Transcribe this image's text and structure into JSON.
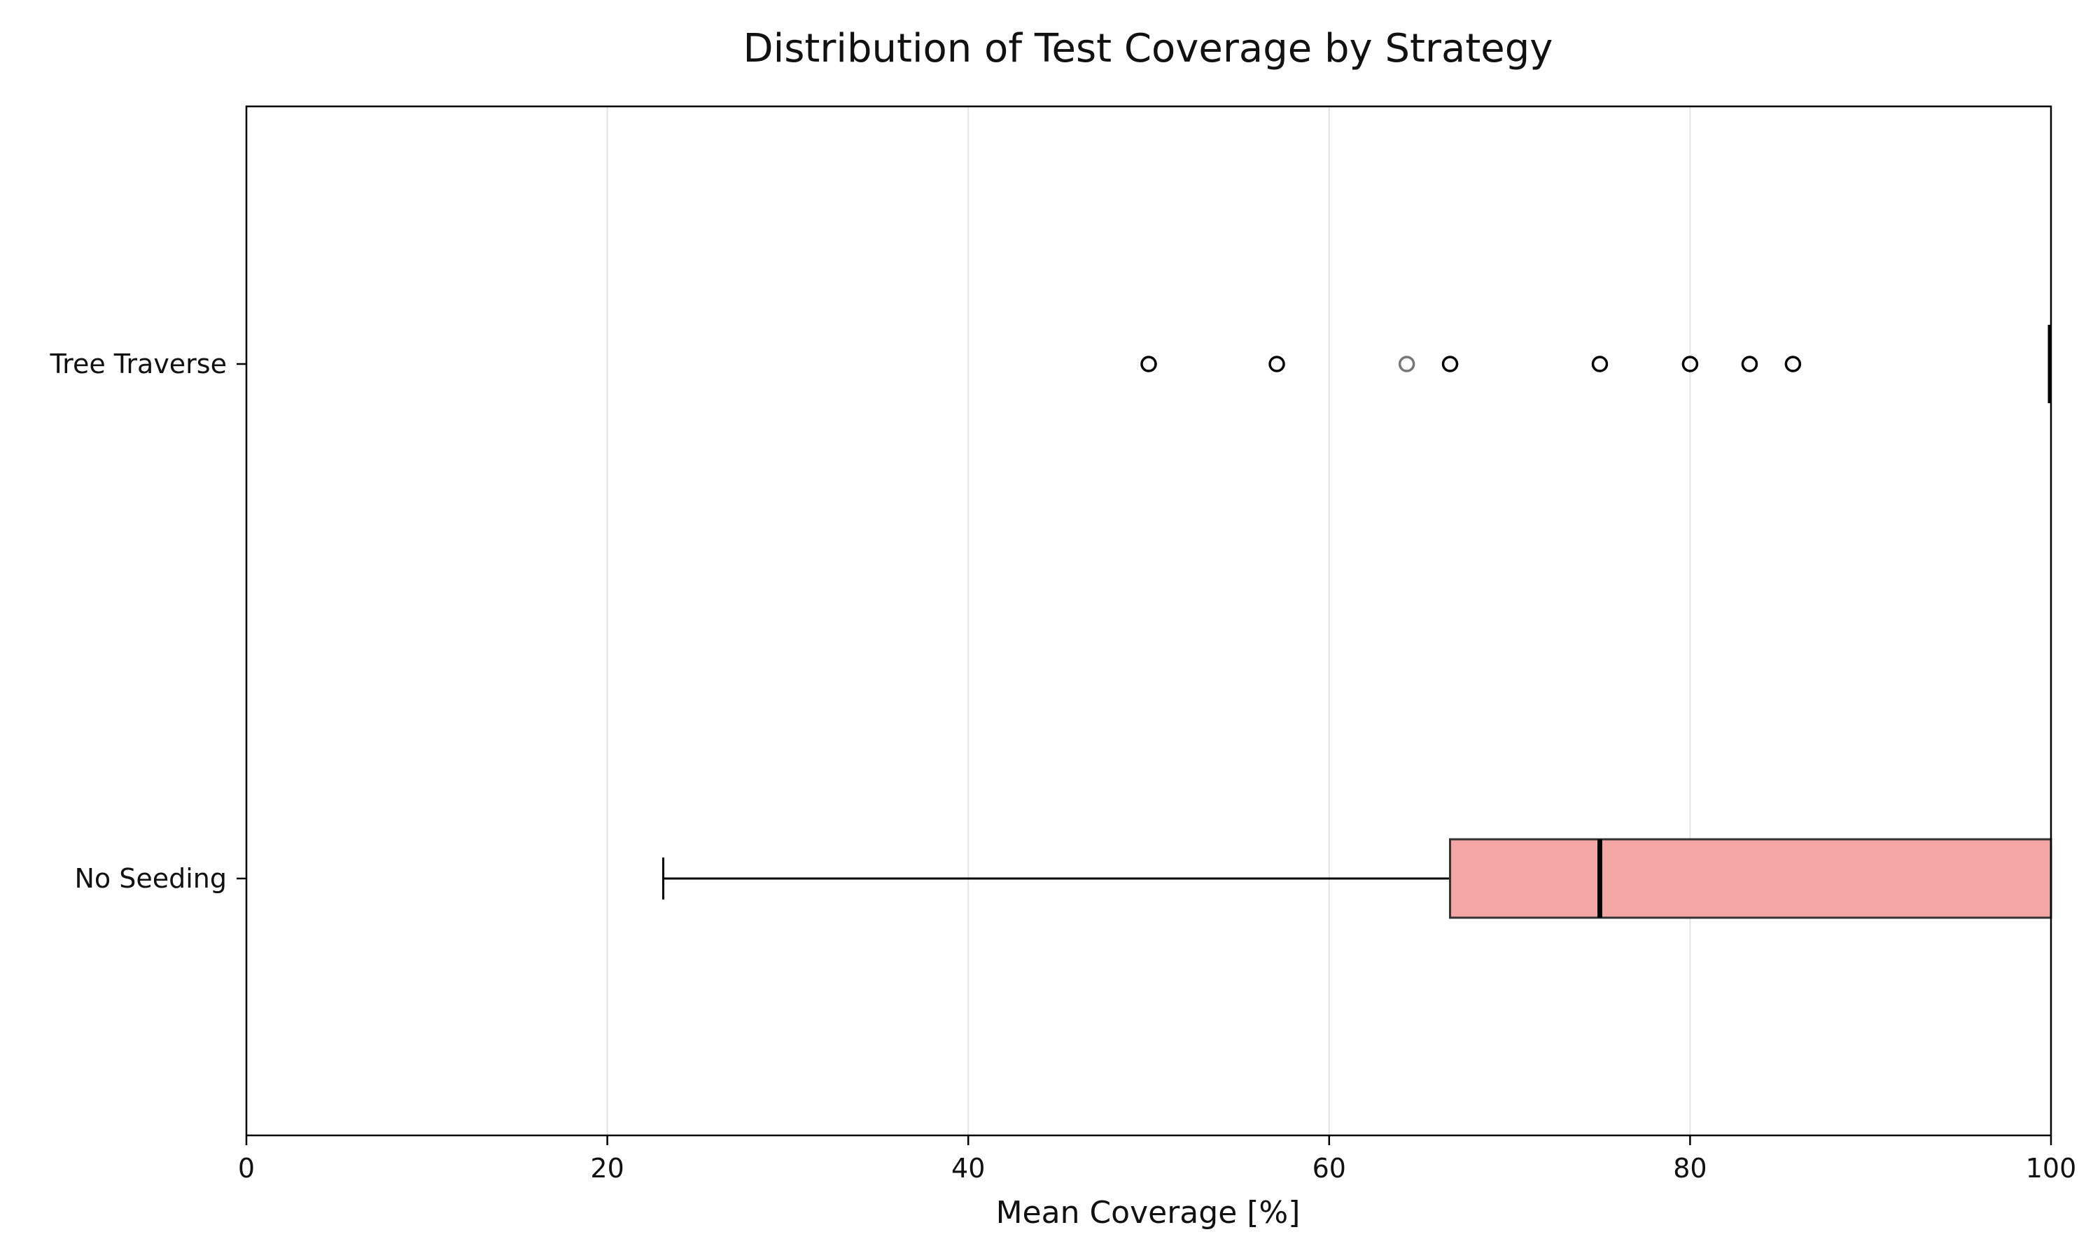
{
  "chart_data": {
    "type": "box",
    "orientation": "horizontal",
    "title": "Distribution of Test Coverage by Strategy",
    "xlabel": "Mean Coverage [%]",
    "ylabel": "",
    "xlim": [
      0,
      100
    ],
    "x_ticks": [
      "0",
      "20",
      "40",
      "60",
      "80",
      "100"
    ],
    "grid": "vertical",
    "legend": "none",
    "categories": [
      "Tree Traverse",
      "No Seeding"
    ],
    "series": [
      {
        "category": "Tree Traverse",
        "min": 100,
        "q1": 100,
        "median": 100,
        "q3": 100,
        "max": 100,
        "outliers": [
          50.0,
          57.1,
          64.3,
          66.7,
          75.0,
          80.0,
          83.3,
          85.7
        ],
        "color": "#f4a6a6"
      },
      {
        "category": "No Seeding",
        "min": 23.1,
        "q1": 66.7,
        "median": 75.0,
        "q3": 100,
        "max": 100,
        "outliers": [],
        "color": "#f4a6a6"
      }
    ],
    "colors": {
      "box_fill": "#f4a6a6",
      "box_edge": "#333333",
      "median": "#000000",
      "whisker": "#000000",
      "outlier": "#000000",
      "outlier_faint": "#777777",
      "grid": "#e4e4e4",
      "axis": "#000000"
    }
  }
}
